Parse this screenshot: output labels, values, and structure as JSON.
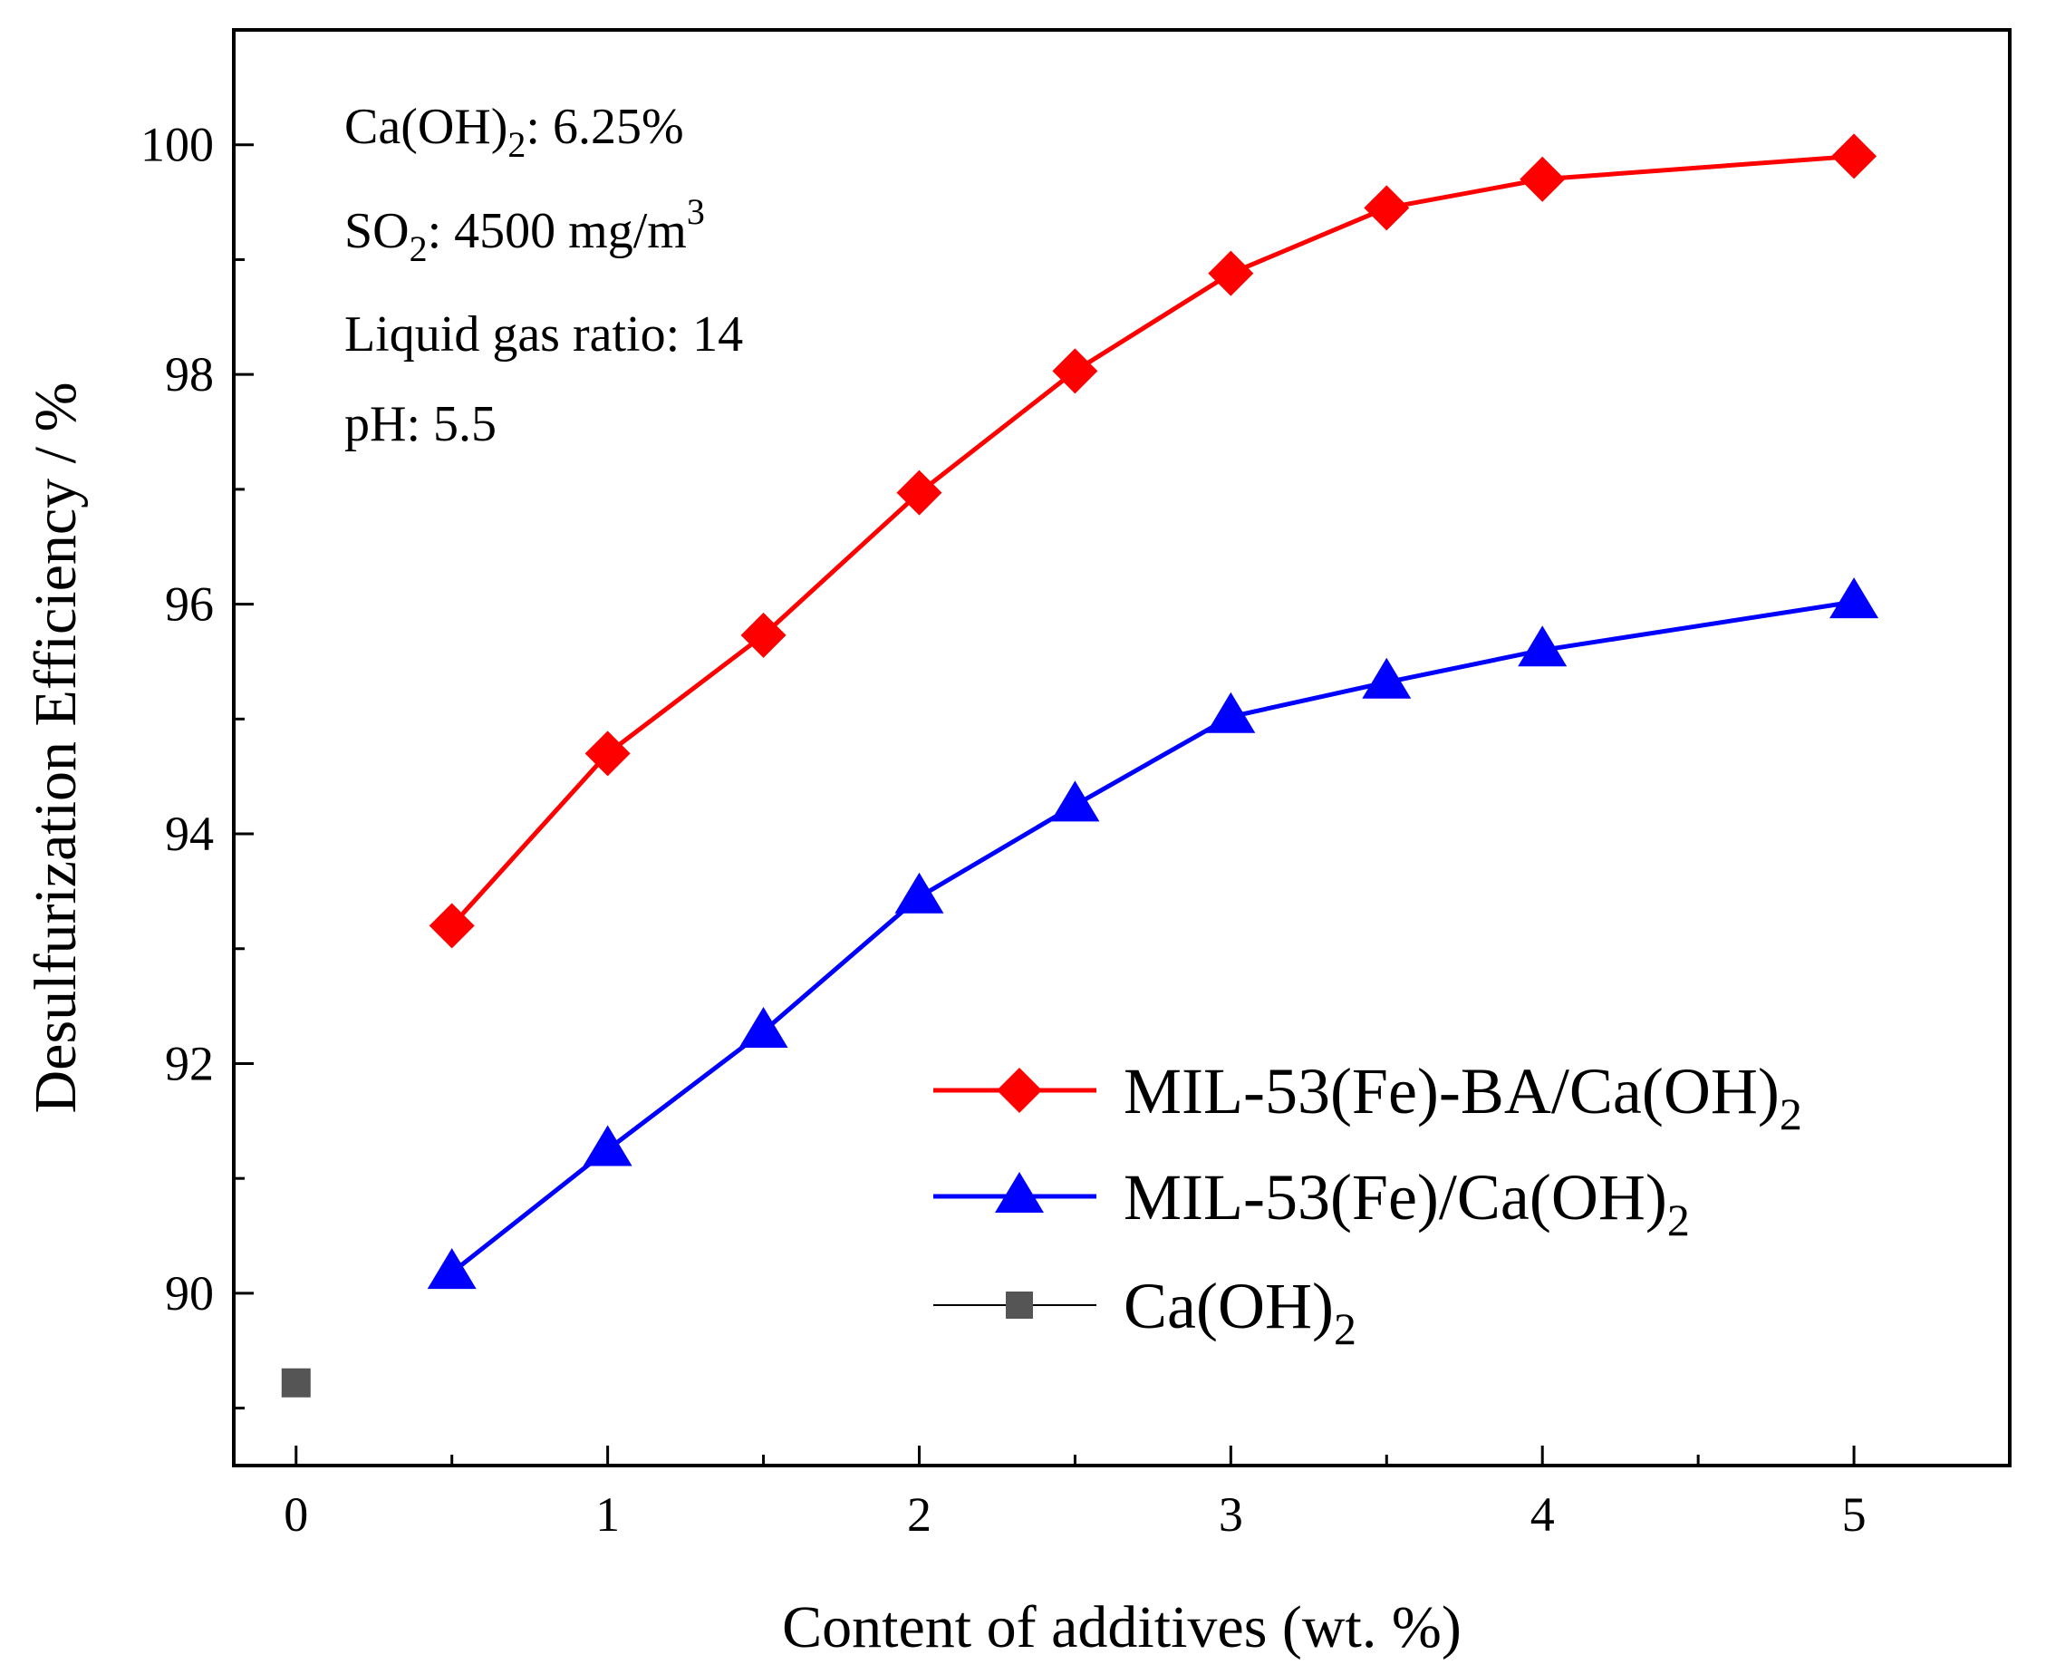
{
  "chart_data": {
    "type": "line",
    "xlabel": "Content of additives (wt. %)",
    "ylabel": "Desulfurization Efficiency / %",
    "xlim": [
      -0.2,
      5.5
    ],
    "ylim": [
      88.5,
      101.0
    ],
    "xticks": [
      0,
      1,
      2,
      3,
      4,
      5
    ],
    "xtick_labels": [
      "0",
      "1",
      "2",
      "3",
      "4",
      "5"
    ],
    "yticks": [
      90,
      92,
      94,
      96,
      98,
      100
    ],
    "ytick_labels": [
      "90",
      "92",
      "94",
      "96",
      "98",
      "100"
    ],
    "grid": false,
    "legend_position": "bottom-right",
    "annotations": [
      {
        "text": "Ca(OH)",
        "sub": "2",
        "rest": ": 6.25%"
      },
      {
        "text": "SO",
        "sub": "2",
        "rest": ": 4500 mg/m",
        "sup": "3"
      },
      {
        "text": "Liquid gas ratio: 14"
      },
      {
        "text": "pH: 5.5"
      }
    ],
    "series": [
      {
        "name": "MIL-53(Fe)-BA/Ca(OH)",
        "name_sub": "2",
        "color": "#ff0000",
        "marker": "diamond",
        "x": [
          0.5,
          1,
          1.5,
          2,
          2.5,
          3,
          3.5,
          4,
          5
        ],
        "y": [
          93.2,
          94.7,
          95.73,
          96.97,
          98.03,
          98.88,
          99.45,
          99.7,
          99.9
        ]
      },
      {
        "name": "MIL-53(Fe)/Ca(OH)",
        "name_sub": "2",
        "color": "#0000ff",
        "marker": "triangle",
        "x": [
          0.5,
          1,
          1.5,
          2,
          2.5,
          3,
          3.5,
          4,
          5
        ],
        "y": [
          90.18,
          91.25,
          92.28,
          93.45,
          94.25,
          95.02,
          95.32,
          95.6,
          96.02
        ]
      },
      {
        "name": "Ca(OH)",
        "name_sub": "2",
        "color": "#555555",
        "line_color": "#000000",
        "marker": "square",
        "x": [
          0
        ],
        "y": [
          89.22
        ]
      }
    ]
  }
}
